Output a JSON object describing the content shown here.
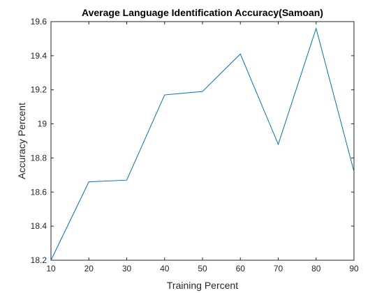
{
  "chart_data": {
    "type": "line",
    "title": "Average Language Identification Accuracy(Samoan)",
    "xlabel": "Training Percent",
    "ylabel": "Accuracy Percent",
    "xlim": [
      10,
      90
    ],
    "ylim": [
      18.2,
      19.6
    ],
    "xticks": [
      "10",
      "20",
      "30",
      "40",
      "50",
      "60",
      "70",
      "80",
      "90"
    ],
    "yticks": [
      "18.2",
      "18.4",
      "18.6",
      "18.8",
      "19",
      "19.2",
      "19.4",
      "19.6"
    ],
    "grid": false,
    "series": [
      {
        "x": [
          10,
          20,
          30,
          40,
          50,
          60,
          70,
          80,
          90
        ],
        "y": [
          18.2,
          18.66,
          18.67,
          19.17,
          19.19,
          19.41,
          18.88,
          19.56,
          18.72
        ],
        "color": "#0072BD"
      }
    ]
  }
}
